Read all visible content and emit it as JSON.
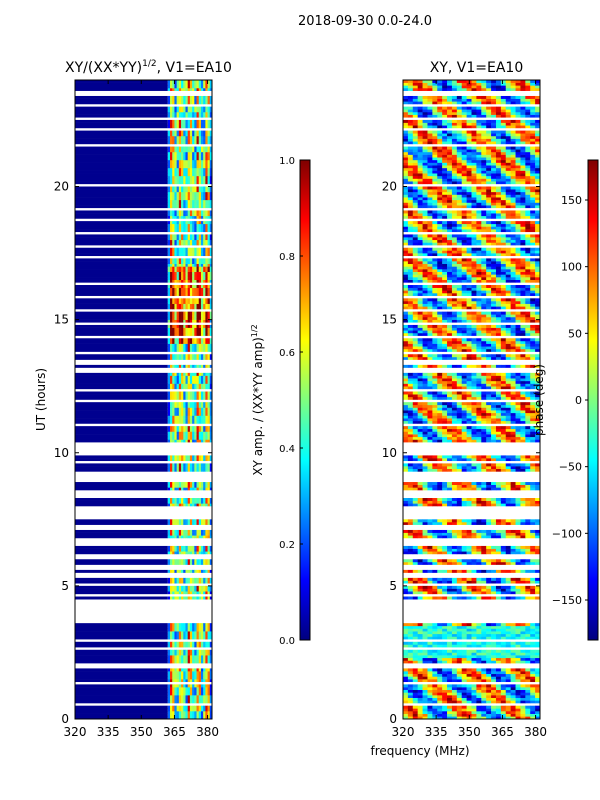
{
  "suptitle": "2018-09-30 0.0-24.0",
  "chart_data": [
    {
      "type": "heatmap",
      "title_main": "XY/(XX*YY)",
      "title_sup": "1/2",
      "title_tail": ", V1=EA10",
      "xlabel": "frequency (MHz)",
      "ylabel": "UT (hours)",
      "xlim": [
        320,
        382
      ],
      "ylim": [
        0,
        24
      ],
      "xticks": [
        320,
        335,
        350,
        365,
        380
      ],
      "yticks": [
        0,
        5,
        10,
        15,
        20
      ],
      "colorbar": {
        "label_main": "XY amp. / (XX*YY amp)",
        "label_sup": "1/2",
        "range": [
          0.0,
          1.0
        ],
        "ticks": [
          "0.0",
          "0.2",
          "0.4",
          "0.6",
          "0.8",
          "1.0"
        ],
        "colormap": "jet"
      }
    },
    {
      "type": "heatmap",
      "title_main": "XY, V1=EA10",
      "xlabel": "frequency (MHz)",
      "ylabel": "",
      "xlim": [
        320,
        382
      ],
      "ylim": [
        0,
        24
      ],
      "xticks": [
        320,
        335,
        350,
        365,
        380
      ],
      "yticks": [
        0,
        5,
        10,
        15,
        20
      ],
      "colorbar": {
        "label_main": "phase (deg)",
        "range": [
          -180,
          180
        ],
        "ticks": [
          "150",
          "100",
          "50",
          "0",
          "−50",
          "−100",
          "−150"
        ],
        "tick_values": [
          150,
          100,
          50,
          0,
          -50,
          -100,
          -150
        ],
        "colormap": "jet"
      }
    }
  ],
  "shared_xlabel": "frequency (MHz)",
  "blank_time_gaps_hours": [
    [
      0.55,
      0.62
    ],
    [
      1.3,
      1.38
    ],
    [
      1.95,
      2.1
    ],
    [
      2.6,
      2.68
    ],
    [
      2.93,
      3.0
    ],
    [
      3.6,
      4.45
    ],
    [
      4.6,
      4.7
    ],
    [
      5.0,
      5.1
    ],
    [
      5.35,
      5.45
    ],
    [
      5.65,
      5.75
    ],
    [
      6.0,
      6.15
    ],
    [
      6.55,
      6.85
    ],
    [
      7.1,
      7.25
    ],
    [
      7.55,
      8.0
    ],
    [
      8.35,
      8.6
    ],
    [
      8.9,
      9.3
    ],
    [
      9.6,
      9.75
    ],
    [
      9.95,
      10.4
    ],
    [
      11.05,
      11.12
    ],
    [
      11.9,
      12.0
    ],
    [
      12.35,
      12.45
    ],
    [
      13.0,
      13.2
    ],
    [
      13.35,
      13.5
    ],
    [
      13.7,
      13.8
    ],
    [
      14.35,
      14.42
    ],
    [
      14.85,
      14.9
    ],
    [
      15.35,
      15.42
    ],
    [
      15.85,
      15.93
    ],
    [
      16.35,
      16.45
    ],
    [
      17.35,
      17.45
    ],
    [
      17.7,
      17.8
    ],
    [
      18.2,
      18.3
    ],
    [
      18.7,
      18.8
    ],
    [
      19.1,
      19.2
    ],
    [
      20.0,
      20.08
    ],
    [
      21.5,
      21.62
    ],
    [
      22.1,
      22.2
    ],
    [
      22.5,
      22.6
    ],
    [
      23.05,
      23.15
    ],
    [
      23.45,
      23.55
    ]
  ],
  "amplitude_band_mhz": [
    362,
    382
  ]
}
